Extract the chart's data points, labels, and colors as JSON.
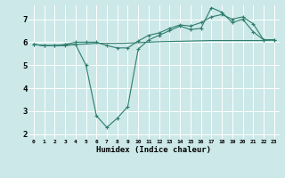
{
  "xlabel": "Humidex (Indice chaleur)",
  "x_ticks": [
    0,
    1,
    2,
    3,
    4,
    5,
    6,
    7,
    8,
    9,
    10,
    11,
    12,
    13,
    14,
    15,
    16,
    17,
    18,
    19,
    20,
    21,
    22,
    23
  ],
  "y_ticks": [
    2,
    3,
    4,
    5,
    6,
    7
  ],
  "xlim": [
    -0.5,
    23.5
  ],
  "ylim": [
    1.8,
    7.6
  ],
  "line_color": "#2e7d6e",
  "bg_color": "#cce8e8",
  "grid_color": "#ffffff",
  "series": {
    "line1": {
      "x": [
        0,
        1,
        2,
        3,
        4,
        5,
        6,
        7,
        8,
        9,
        10,
        11,
        12,
        13,
        14,
        15,
        16,
        17,
        18,
        19,
        20,
        21,
        22,
        23
      ],
      "y": [
        5.9,
        5.85,
        5.85,
        5.85,
        5.9,
        5.0,
        2.8,
        2.3,
        2.7,
        3.2,
        5.7,
        6.1,
        6.3,
        6.5,
        6.7,
        6.55,
        6.6,
        7.5,
        7.3,
        6.85,
        7.0,
        6.45,
        6.1,
        6.1
      ]
    },
    "line2": {
      "x": [
        0,
        1,
        2,
        3,
        4,
        5,
        6,
        7,
        8,
        9,
        10,
        11,
        12,
        13,
        14,
        15,
        16,
        17,
        18,
        19,
        20,
        21,
        22,
        23
      ],
      "y": [
        5.9,
        5.85,
        5.85,
        5.9,
        6.0,
        6.0,
        6.0,
        5.85,
        5.75,
        5.75,
        6.05,
        6.3,
        6.4,
        6.6,
        6.75,
        6.7,
        6.85,
        7.1,
        7.2,
        7.0,
        7.1,
        6.8,
        6.1,
        6.1
      ]
    },
    "line3": {
      "x": [
        0,
        1,
        2,
        3,
        4,
        5,
        6,
        7,
        8,
        9,
        10,
        11,
        12,
        13,
        14,
        15,
        16,
        17,
        18,
        19,
        20,
        21,
        22,
        23
      ],
      "y": [
        5.9,
        5.85,
        5.85,
        5.88,
        5.9,
        5.92,
        5.95,
        5.95,
        5.95,
        5.96,
        5.98,
        6.0,
        6.02,
        6.03,
        6.04,
        6.05,
        6.06,
        6.07,
        6.07,
        6.07,
        6.07,
        6.07,
        6.07,
        6.1
      ]
    }
  }
}
